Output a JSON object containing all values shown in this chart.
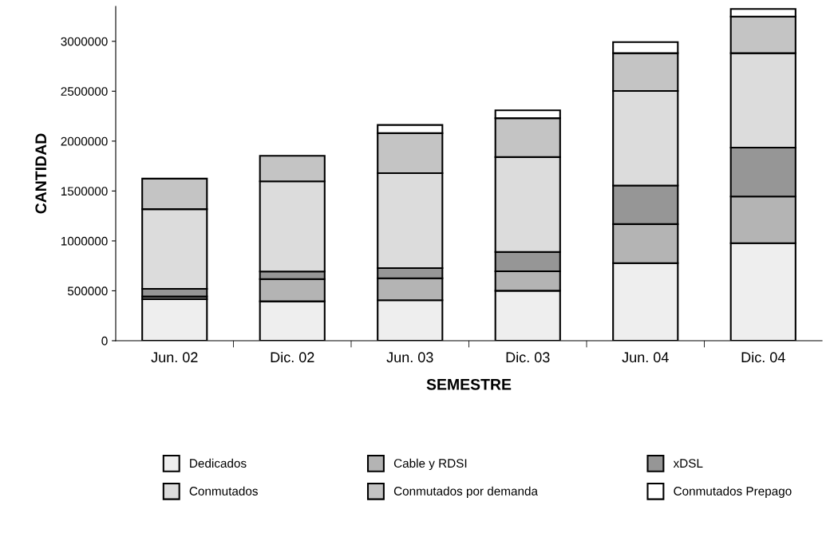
{
  "chart_data": {
    "type": "bar",
    "stacked": true,
    "xlabel": "SEMESTRE",
    "ylabel": "CANTIDAD",
    "categories": [
      "Jun. 02",
      "Dic. 02",
      "Jun. 03",
      "Dic. 03",
      "Jun. 04",
      "Dic. 04"
    ],
    "series": [
      {
        "name": "Dedicados",
        "color": "#eeeeee",
        "values": [
          417000,
          395000,
          406000,
          501000,
          778000,
          978000
        ]
      },
      {
        "name": "Cable y RDSI",
        "color": "#b4b4b4",
        "values": [
          26000,
          222000,
          219000,
          195000,
          390000,
          467000
        ]
      },
      {
        "name": "xDSL",
        "color": "#969696",
        "values": [
          77000,
          76000,
          102000,
          193000,
          387000,
          490000
        ]
      },
      {
        "name": "Conmutados",
        "color": "#dcdcdc",
        "values": [
          798000,
          904000,
          952000,
          951000,
          947000,
          946000
        ]
      },
      {
        "name": "Conmutados por demanda",
        "color": "#c4c4c4",
        "values": [
          306000,
          256000,
          401000,
          390000,
          379000,
          367000
        ]
      },
      {
        "name": "Conmutados Prepago",
        "color": "#ffffff",
        "values": [
          null,
          null,
          82000,
          79000,
          111000,
          76000
        ]
      }
    ],
    "ylim": [
      0,
      3350000
    ],
    "yticks": [
      0,
      500000,
      1000000,
      1500000,
      2000000,
      2500000,
      3000000
    ],
    "grid": false,
    "legend": "bottom"
  }
}
